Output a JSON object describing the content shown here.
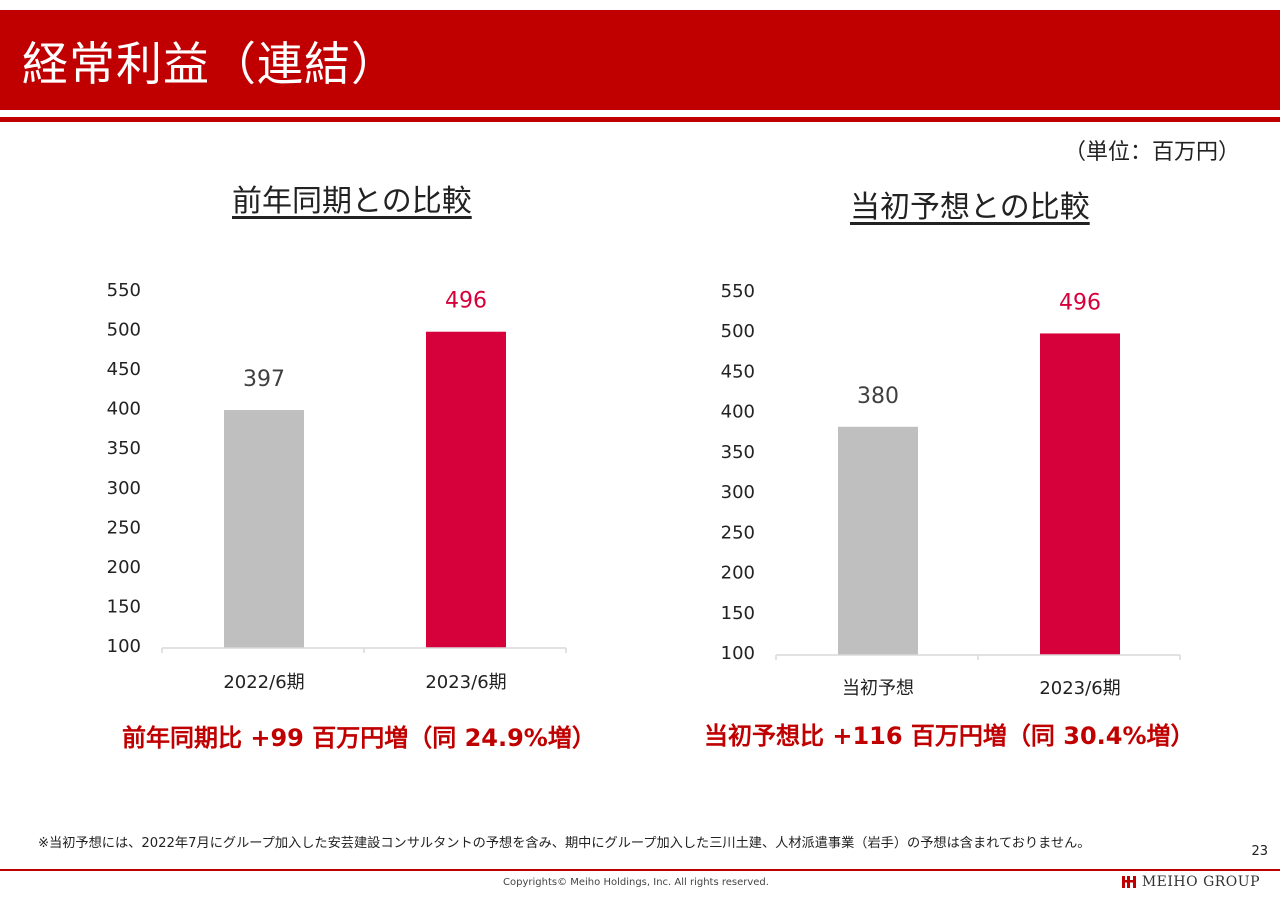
{
  "header": {
    "title": "経常利益（連結）"
  },
  "unit_label": "（単位：百万円）",
  "colors": {
    "brand": "#c00000",
    "highlight": "#d6003a",
    "neutral": "#bfbfbf",
    "value_text_current": "#d6003a",
    "value_text_prior": "#404040"
  },
  "chart_data": [
    {
      "type": "bar",
      "title": "前年同期との比較",
      "categories": [
        "2022/6期",
        "2023/6期"
      ],
      "values": [
        397,
        496
      ],
      "data_labels": [
        "397",
        "496"
      ],
      "bar_colors": [
        "#bfbfbf",
        "#d6003a"
      ],
      "ylim": [
        100,
        550
      ],
      "yticks": [
        100,
        150,
        200,
        250,
        300,
        350,
        400,
        450,
        500,
        550
      ],
      "ytick_labels": [
        "100",
        "150",
        "200",
        "250",
        "300",
        "350",
        "400",
        "450",
        "500",
        "550"
      ],
      "grid": false,
      "summary": "前年同期比 +99 百万円増（同 24.9%増）"
    },
    {
      "type": "bar",
      "title": "当初予想との比較",
      "categories": [
        "当初予想",
        "2023/6期"
      ],
      "values": [
        380,
        496
      ],
      "data_labels": [
        "380",
        "496"
      ],
      "bar_colors": [
        "#bfbfbf",
        "#d6003a"
      ],
      "ylim": [
        100,
        550
      ],
      "yticks": [
        100,
        150,
        200,
        250,
        300,
        350,
        400,
        450,
        500,
        550
      ],
      "ytick_labels": [
        "100",
        "150",
        "200",
        "250",
        "300",
        "350",
        "400",
        "450",
        "500",
        "550"
      ],
      "grid": false,
      "summary": "当初予想比 +116 百万円増（同 30.4%増）"
    }
  ],
  "footnote": "※当初予想には、2022年7月にグループ加入した安芸建設コンサルタントの予想を含み、期中にグループ加入した三川土建、人材派遣事業（岩手）の予想は含まれておりません。",
  "page_number": "23",
  "copyright": "Copyrights© Meiho Holdings, Inc.  All rights reserved.",
  "logo_text": "MEIHO GROUP"
}
